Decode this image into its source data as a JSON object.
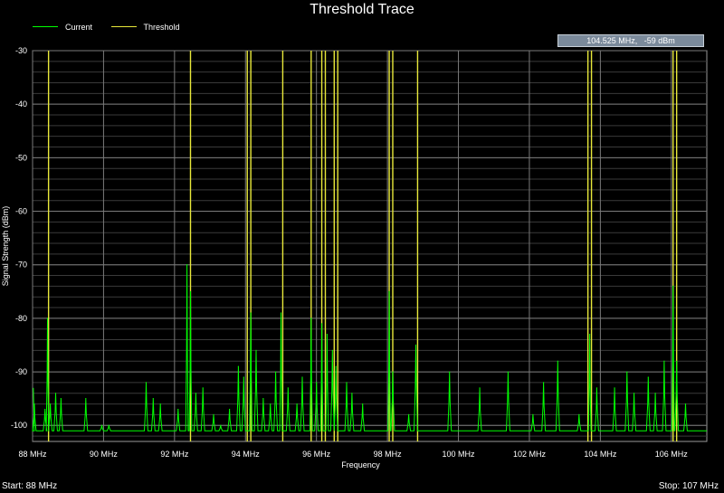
{
  "chart_data": {
    "type": "line",
    "title": "Threshold Trace",
    "xlabel": "Frequency",
    "ylabel": "Signal Strength (dBm)",
    "xlim": [
      88,
      107
    ],
    "ylim": [
      -103,
      -30
    ],
    "x_ticks": [
      {
        "v": 88,
        "label": "88 MHz"
      },
      {
        "v": 90,
        "label": "90 MHz"
      },
      {
        "v": 92,
        "label": "92 MHz"
      },
      {
        "v": 94,
        "label": "94 MHz"
      },
      {
        "v": 96,
        "label": "96 MHz"
      },
      {
        "v": 98,
        "label": "98 MHz"
      },
      {
        "v": 100,
        "label": "100 MHz"
      },
      {
        "v": 102,
        "label": "102 MHz"
      },
      {
        "v": 104,
        "label": "104 MHz"
      },
      {
        "v": 106,
        "label": "106 MHz"
      }
    ],
    "y_ticks": [
      {
        "v": -30,
        "label": "-30"
      },
      {
        "v": -40,
        "label": "-40"
      },
      {
        "v": -50,
        "label": "-50"
      },
      {
        "v": -60,
        "label": "-60"
      },
      {
        "v": -70,
        "label": "-70"
      },
      {
        "v": -80,
        "label": "-80"
      },
      {
        "v": -90,
        "label": "-90"
      },
      {
        "v": -100,
        "label": "-100"
      }
    ],
    "legend": [
      "Current",
      "Threshold"
    ],
    "legend_position": "top-left",
    "grid": true,
    "baseline_dbm": -101,
    "series": [
      {
        "name": "Current",
        "color": "#00ff00",
        "peaks": [
          [
            88.05,
            -96
          ],
          [
            88.35,
            -97
          ],
          [
            88.42,
            -80
          ],
          [
            88.5,
            -96
          ],
          [
            88.65,
            -94
          ],
          [
            88.8,
            -95
          ],
          [
            89.5,
            -95
          ],
          [
            89.95,
            -100
          ],
          [
            90.15,
            -100
          ],
          [
            91.2,
            -92
          ],
          [
            91.4,
            -95
          ],
          [
            91.6,
            -96
          ],
          [
            92.1,
            -97
          ],
          [
            92.35,
            -70
          ],
          [
            92.45,
            -75
          ],
          [
            92.6,
            -94
          ],
          [
            92.8,
            -93
          ],
          [
            93.1,
            -98
          ],
          [
            93.3,
            -100
          ],
          [
            93.55,
            -97
          ],
          [
            93.8,
            -89
          ],
          [
            93.95,
            -91
          ],
          [
            94.15,
            -79
          ],
          [
            94.3,
            -86
          ],
          [
            94.5,
            -95
          ],
          [
            94.7,
            -96
          ],
          [
            94.85,
            -90
          ],
          [
            95.0,
            -79
          ],
          [
            95.2,
            -93
          ],
          [
            95.45,
            -96
          ],
          [
            95.6,
            -91
          ],
          [
            95.85,
            -80
          ],
          [
            96.0,
            -92
          ],
          [
            96.15,
            -81
          ],
          [
            96.3,
            -83
          ],
          [
            96.45,
            -86
          ],
          [
            96.55,
            -89
          ],
          [
            96.85,
            -92
          ],
          [
            97.0,
            -94
          ],
          [
            97.3,
            -96
          ],
          [
            98.05,
            -75
          ],
          [
            98.15,
            -90
          ],
          [
            98.6,
            -98
          ],
          [
            98.8,
            -85
          ],
          [
            99.75,
            -90
          ],
          [
            100.6,
            -93
          ],
          [
            101.4,
            -90
          ],
          [
            102.1,
            -98
          ],
          [
            102.4,
            -92
          ],
          [
            102.8,
            -88
          ],
          [
            103.4,
            -98
          ],
          [
            103.7,
            -83
          ],
          [
            103.9,
            -93
          ],
          [
            104.4,
            -93
          ],
          [
            104.75,
            -90
          ],
          [
            104.95,
            -94
          ],
          [
            105.35,
            -91
          ],
          [
            105.55,
            -94
          ],
          [
            105.8,
            -88
          ],
          [
            106.05,
            -74
          ],
          [
            106.15,
            -88
          ],
          [
            106.4,
            -96
          ]
        ]
      },
      {
        "name": "Threshold",
        "color": "#e8e83a",
        "lines_mhz": [
          88.45,
          92.45,
          94.05,
          94.15,
          95.05,
          95.85,
          96.15,
          96.25,
          96.5,
          96.6,
          98.05,
          98.15,
          98.85,
          103.65,
          103.75,
          106.05,
          106.15
        ]
      }
    ]
  },
  "readout": {
    "freq": "104.525 MHz,",
    "level": "-59 dBm"
  },
  "footer": {
    "start": "Start: 88 MHz",
    "stop": "Stop: 107 MHz"
  }
}
